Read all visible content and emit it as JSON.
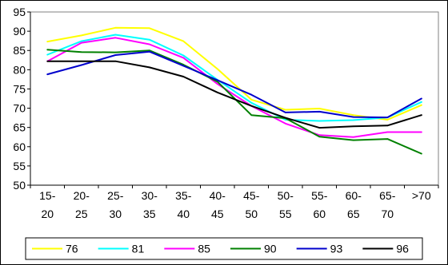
{
  "chart_data": {
    "type": "line",
    "title": "",
    "xlabel": "",
    "ylabel": "",
    "categories": [
      [
        "15-",
        "20"
      ],
      [
        "20-",
        "25"
      ],
      [
        "25-",
        "30"
      ],
      [
        "30-",
        "35"
      ],
      [
        "35-",
        "40"
      ],
      [
        "40-",
        "45"
      ],
      [
        "45-",
        "50"
      ],
      [
        "50-",
        "55"
      ],
      [
        "55-",
        "60"
      ],
      [
        "60-",
        "65"
      ],
      [
        "65-",
        "70"
      ],
      [
        ">70"
      ]
    ],
    "ylim": [
      50,
      95
    ],
    "yticks": [
      50,
      55,
      60,
      65,
      70,
      75,
      80,
      85,
      90,
      95
    ],
    "grid": false,
    "legend_position": "bottom",
    "series": [
      {
        "name": "76",
        "color": "#FFFF00",
        "values": [
          87.3,
          88.9,
          90.9,
          90.8,
          87.4,
          80.2,
          72.2,
          69.6,
          69.9,
          68.2,
          67.0,
          70.8
        ]
      },
      {
        "name": "81",
        "color": "#00FFFF",
        "values": [
          83.9,
          87.4,
          89.1,
          87.8,
          83.7,
          77.4,
          71.4,
          67.0,
          66.7,
          66.9,
          67.6,
          71.6
        ]
      },
      {
        "name": "85",
        "color": "#FF00FF",
        "values": [
          82.2,
          87.0,
          88.3,
          86.6,
          83.1,
          76.3,
          70.6,
          66.0,
          63.0,
          62.5,
          63.8,
          63.8
        ]
      },
      {
        "name": "90",
        "color": "#008000",
        "values": [
          85.2,
          84.6,
          84.5,
          85.0,
          81.3,
          76.9,
          68.2,
          67.4,
          62.6,
          61.7,
          62.0,
          58.2
        ]
      },
      {
        "name": "93",
        "color": "#0000CC",
        "values": [
          78.8,
          81.2,
          83.8,
          84.7,
          81.0,
          77.3,
          73.5,
          68.9,
          69.1,
          67.7,
          67.6,
          72.5
        ]
      },
      {
        "name": "96",
        "color": "#000000",
        "values": [
          82.2,
          82.2,
          82.2,
          80.6,
          78.2,
          74.1,
          70.6,
          67.5,
          64.9,
          65.3,
          65.5,
          68.2
        ]
      }
    ]
  }
}
